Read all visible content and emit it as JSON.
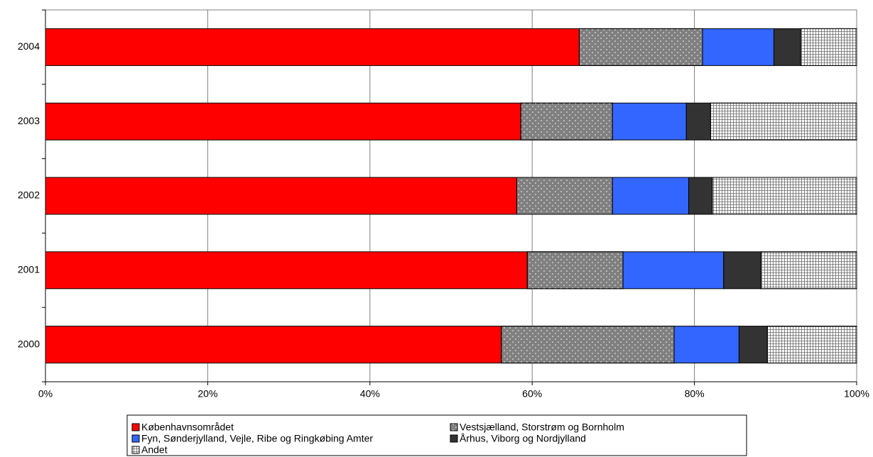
{
  "chart_data": {
    "type": "stacked-bar-horizontal",
    "categories": [
      "2000",
      "2001",
      "2002",
      "2003",
      "2004"
    ],
    "series": [
      {
        "name": "Københavnsområdet",
        "color": "#ff0000",
        "values": [
          56.2,
          59.4,
          58.1,
          58.6,
          65.8
        ]
      },
      {
        "name": "Vestsjælland, Storstrøm og Bornholm",
        "color": "#808080",
        "pattern": "dots",
        "values": [
          21.3,
          11.8,
          11.8,
          11.3,
          15.2
        ]
      },
      {
        "name": "Fyn, Sønderjylland, Vejle, Ribe og Ringkøbing Amter",
        "color": "#3366ff",
        "values": [
          8.0,
          12.4,
          9.4,
          9.1,
          8.8
        ]
      },
      {
        "name": "Århus, Viborg og Nordjylland",
        "color": "#333333",
        "values": [
          3.5,
          4.6,
          2.9,
          3.0,
          3.3
        ]
      },
      {
        "name": "Andet",
        "color": "#ffffff",
        "pattern": "grid",
        "values": [
          11.0,
          11.8,
          17.8,
          18.0,
          6.9
        ]
      }
    ],
    "xlim": [
      0,
      100
    ],
    "xticks": [
      {
        "value": 0,
        "label": "0%"
      },
      {
        "value": 20,
        "label": "20%"
      },
      {
        "value": 40,
        "label": "40%"
      },
      {
        "value": 60,
        "label": "60%"
      },
      {
        "value": 80,
        "label": "80%"
      },
      {
        "value": 100,
        "label": "100%"
      }
    ],
    "grid": true
  }
}
